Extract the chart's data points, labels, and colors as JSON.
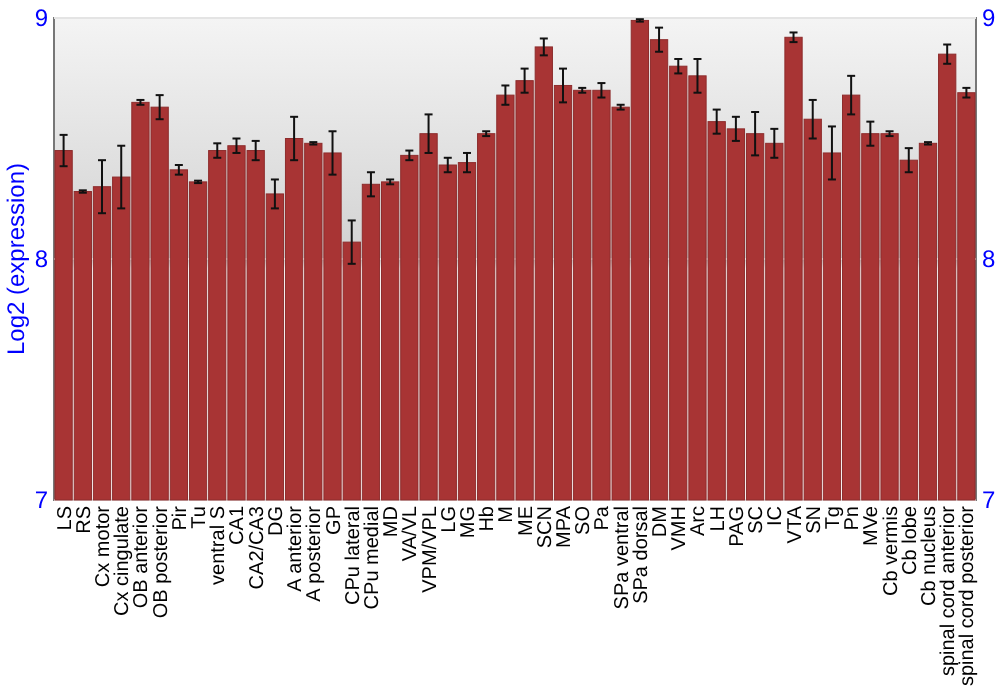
{
  "chart_data": {
    "type": "bar",
    "ylabel": "Log2 (expression)",
    "categories": [
      "LS",
      "RS",
      "Cx motor",
      "Cx cingulate",
      "OB anterior",
      "OB posterior",
      "Pir",
      "Tu",
      "ventral S",
      "CA1",
      "CA2/CA3",
      "DG",
      "A anterior",
      "A posterior",
      "GP",
      "CPu lateral",
      "CPu medial",
      "MD",
      "VA/VL",
      "VPM/VPL",
      "LG",
      "MG",
      "Hb",
      "M",
      "ME",
      "SCN",
      "MPA",
      "SO",
      "Pa",
      "SPa ventral",
      "SPa dorsal",
      "DM",
      "VMH",
      "Arc",
      "LH",
      "PAG",
      "SC",
      "IC",
      "VTA",
      "SN",
      "Tg",
      "Pn",
      "MVe",
      "Cb vermis",
      "Cb lobe",
      "Cb nucleus",
      "spinal cord anterior",
      "spinal cord posterior"
    ],
    "values": [
      8.45,
      8.28,
      8.3,
      8.34,
      8.65,
      8.63,
      8.37,
      8.32,
      8.45,
      8.47,
      8.45,
      8.27,
      8.5,
      8.48,
      8.44,
      8.07,
      8.31,
      8.32,
      8.43,
      8.52,
      8.39,
      8.4,
      8.52,
      8.68,
      8.74,
      8.88,
      8.72,
      8.7,
      8.7,
      8.63,
      8.99,
      8.91,
      8.8,
      8.76,
      8.57,
      8.54,
      8.52,
      8.48,
      8.92,
      8.58,
      8.44,
      8.68,
      8.52,
      8.52,
      8.41,
      8.48,
      8.85,
      8.69
    ],
    "errors": [
      0.065,
      0.005,
      0.11,
      0.13,
      0.01,
      0.05,
      0.02,
      0.005,
      0.03,
      0.03,
      0.04,
      0.06,
      0.09,
      0.005,
      0.09,
      0.09,
      0.05,
      0.01,
      0.02,
      0.08,
      0.03,
      0.04,
      0.01,
      0.04,
      0.05,
      0.035,
      0.07,
      0.01,
      0.03,
      0.01,
      0.005,
      0.05,
      0.03,
      0.07,
      0.05,
      0.05,
      0.09,
      0.06,
      0.02,
      0.08,
      0.11,
      0.08,
      0.05,
      0.01,
      0.05,
      0.005,
      0.04,
      0.02
    ],
    "color": "#a83434",
    "ylim": [
      7,
      9
    ],
    "yticks": [
      7,
      8,
      9
    ],
    "y2lim": [
      7,
      9
    ],
    "y2ticks": [
      7,
      8,
      9
    ],
    "grid": "y"
  }
}
